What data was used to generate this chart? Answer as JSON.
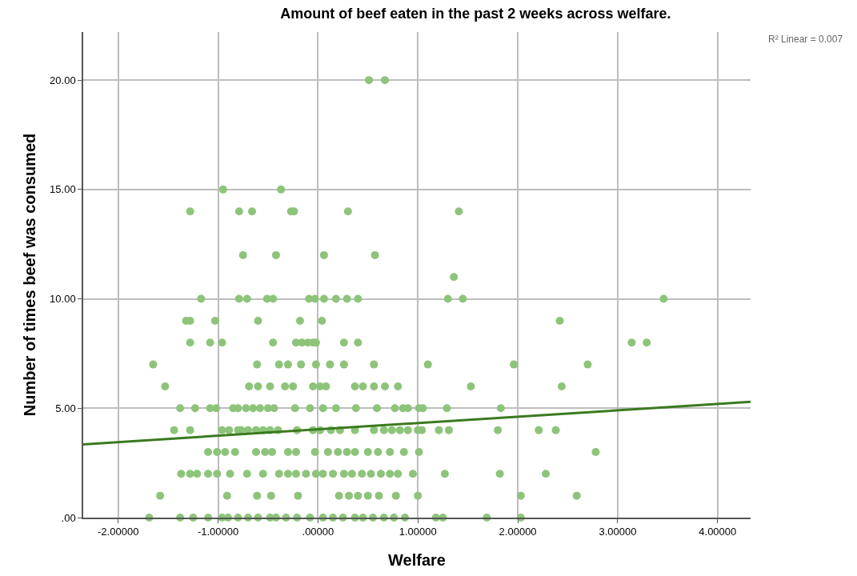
{
  "chart_data": {
    "type": "scatter",
    "title": "Amount of beef eaten in the past 2 weeks across welfare.",
    "xlabel": "Welfare",
    "ylabel": "Number of times beef was consumed",
    "annotations": [
      "R² Linear = 0.007"
    ],
    "xlim": [
      -2.35,
      4.33
    ],
    "ylim": [
      0,
      22.2
    ],
    "xticks": [
      {
        "value": -2,
        "label": "-2.00000"
      },
      {
        "value": -1,
        "label": "-1.00000"
      },
      {
        "value": 0,
        "label": ".00000"
      },
      {
        "value": 1,
        "label": "1.00000"
      },
      {
        "value": 2,
        "label": "2.00000"
      },
      {
        "value": 3,
        "label": "3.00000"
      },
      {
        "value": 4,
        "label": "4.00000"
      }
    ],
    "yticks": [
      {
        "value": 0,
        "label": ".00"
      },
      {
        "value": 5,
        "label": "5.00"
      },
      {
        "value": 10,
        "label": "10.00"
      },
      {
        "value": 15,
        "label": "15.00"
      },
      {
        "value": 20,
        "label": "20.00"
      }
    ],
    "grid": true,
    "legend": false,
    "series": [
      {
        "color": "#8dc47a",
        "marker": "circle",
        "x": [
          0.51,
          0.67,
          -0.95,
          -0.37,
          -1.28,
          -0.79,
          -0.66,
          -0.27,
          -0.24,
          0.3,
          1.41,
          -0.75,
          -0.42,
          0.06,
          0.57,
          1.36,
          -1.17,
          -0.79,
          -0.71,
          -0.51,
          -0.45,
          -0.09,
          -0.03,
          0.06,
          0.18,
          0.29,
          0.4,
          1.3,
          1.45,
          3.46,
          -1.32,
          -1.28,
          -1.03,
          -0.6,
          -0.18,
          0.04,
          2.42,
          -1.28,
          -1.08,
          -0.96,
          -0.45,
          -0.22,
          -0.16,
          -0.1,
          -0.05,
          -0.02,
          0.26,
          0.4,
          3.14,
          3.29,
          -1.65,
          -0.61,
          -0.39,
          -0.3,
          -0.17,
          -0.02,
          0.12,
          0.26,
          0.56,
          1.1,
          1.96,
          2.7,
          -1.53,
          -0.69,
          -0.6,
          -0.48,
          -0.33,
          -0.25,
          -0.05,
          0.02,
          0.08,
          0.37,
          0.45,
          0.56,
          0.67,
          0.8,
          1.53,
          2.44,
          -1.38,
          -1.23,
          -1.08,
          -1.02,
          -0.85,
          -0.8,
          -0.72,
          -0.65,
          -0.58,
          -0.5,
          -0.44,
          -0.23,
          -0.08,
          0.05,
          0.18,
          0.38,
          0.59,
          0.77,
          0.85,
          0.9,
          1.01,
          1.05,
          1.29,
          1.83,
          -1.44,
          -1.28,
          -0.96,
          -0.89,
          -0.8,
          -0.77,
          -0.7,
          -0.62,
          -0.55,
          -0.48,
          -0.4,
          -0.21,
          -0.05,
          0.02,
          0.13,
          0.22,
          0.37,
          0.56,
          0.66,
          0.74,
          0.82,
          0.9,
          1.0,
          1.04,
          1.21,
          1.31,
          1.8,
          2.21,
          2.38,
          -1.1,
          -1.01,
          -0.93,
          -0.83,
          -0.62,
          -0.53,
          -0.46,
          -0.3,
          -0.22,
          -0.03,
          0.1,
          0.2,
          0.29,
          0.37,
          0.5,
          0.6,
          0.72,
          0.86,
          1.01,
          2.78,
          -1.37,
          -1.28,
          -1.21,
          -1.1,
          -1.01,
          -0.88,
          -0.71,
          -0.55,
          -0.39,
          -0.3,
          -0.22,
          -0.12,
          -0.02,
          0.05,
          0.15,
          0.26,
          0.34,
          0.44,
          0.53,
          0.63,
          0.72,
          0.8,
          0.95,
          1.27,
          1.82,
          2.28,
          -1.58,
          -0.91,
          -0.61,
          -0.47,
          -0.2,
          0.21,
          0.31,
          0.4,
          0.5,
          0.61,
          0.78,
          1.0,
          2.03,
          2.59,
          -1.69,
          -1.38,
          -1.25,
          -1.1,
          -0.96,
          -0.9,
          -0.8,
          -0.7,
          -0.6,
          -0.48,
          -0.42,
          -0.32,
          -0.21,
          -0.08,
          0.05,
          0.15,
          0.25,
          0.37,
          0.45,
          0.55,
          0.66,
          0.76,
          0.87,
          1.18,
          1.25,
          1.69,
          2.03
        ],
        "values": [
          20,
          20,
          15,
          15,
          14,
          14,
          14,
          14,
          14,
          14,
          14,
          12,
          12,
          12,
          12,
          11,
          10,
          10,
          10,
          10,
          10,
          10,
          10,
          10,
          10,
          10,
          10,
          10,
          10,
          10,
          9,
          9,
          9,
          9,
          9,
          9,
          9,
          8,
          8,
          8,
          8,
          8,
          8,
          8,
          8,
          8,
          8,
          8,
          8,
          8,
          7,
          7,
          7,
          7,
          7,
          7,
          7,
          7,
          7,
          7,
          7,
          7,
          6,
          6,
          6,
          6,
          6,
          6,
          6,
          6,
          6,
          6,
          6,
          6,
          6,
          6,
          6,
          6,
          5,
          5,
          5,
          5,
          5,
          5,
          5,
          5,
          5,
          5,
          5,
          5,
          5,
          5,
          5,
          5,
          5,
          5,
          5,
          5,
          5,
          5,
          5,
          5,
          4,
          4,
          4,
          4,
          4,
          4,
          4,
          4,
          4,
          4,
          4,
          4,
          4,
          4,
          4,
          4,
          4,
          4,
          4,
          4,
          4,
          4,
          4,
          4,
          4,
          4,
          4,
          4,
          4,
          3,
          3,
          3,
          3,
          3,
          3,
          3,
          3,
          3,
          3,
          3,
          3,
          3,
          3,
          3,
          3,
          3,
          3,
          3,
          3,
          2,
          2,
          2,
          2,
          2,
          2,
          2,
          2,
          2,
          2,
          2,
          2,
          2,
          2,
          2,
          2,
          2,
          2,
          2,
          2,
          2,
          2,
          2,
          2,
          2,
          2,
          1,
          1,
          1,
          1,
          1,
          1,
          1,
          1,
          1,
          1,
          1,
          1,
          1,
          1,
          0,
          0,
          0,
          0,
          0,
          0,
          0,
          0,
          0,
          0,
          0,
          0,
          0,
          0,
          0,
          0,
          0,
          0,
          0,
          0,
          0,
          0,
          0,
          0,
          0,
          0,
          0
        ]
      },
      {
        "type": "line",
        "marker": "none",
        "color": "#3b7a1f",
        "x": [
          -2.35,
          4.33
        ],
        "values": [
          3.35,
          5.29
        ]
      }
    ]
  }
}
